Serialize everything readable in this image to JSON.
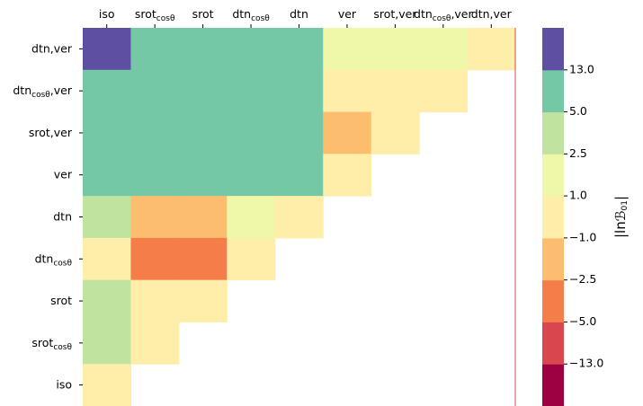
{
  "chart_data": {
    "type": "heatmap",
    "x_categories": [
      [
        "iso"
      ],
      [
        "srot",
        "cosθ"
      ],
      [
        "srot"
      ],
      [
        "dtn",
        "cosθ"
      ],
      [
        "dtn"
      ],
      [
        "ver"
      ],
      [
        "srot,ver"
      ],
      [
        "dtn",
        "cosθ",
        ",ver"
      ],
      [
        "dtn,ver"
      ]
    ],
    "y_categories": [
      [
        "dtn,ver"
      ],
      [
        "dtn",
        "cosθ",
        ",ver"
      ],
      [
        "srot,ver"
      ],
      [
        "ver"
      ],
      [
        "dtn"
      ],
      [
        "dtn",
        "cosθ"
      ],
      [
        "srot"
      ],
      [
        "srot",
        "cosθ"
      ],
      [
        "iso"
      ]
    ],
    "values": [
      [
        15,
        9,
        9,
        9,
        9,
        1.5,
        1.5,
        1.5,
        0
      ],
      [
        9,
        9,
        9,
        9,
        9,
        0,
        0,
        0,
        null
      ],
      [
        9,
        9,
        9,
        9,
        9,
        -1.7,
        0,
        null,
        null
      ],
      [
        9,
        9,
        9,
        9,
        9,
        0,
        null,
        null,
        null
      ],
      [
        3.5,
        -1.7,
        -1.7,
        1.5,
        0,
        null,
        null,
        null,
        null
      ],
      [
        0,
        -3.5,
        -3.5,
        0,
        null,
        null,
        null,
        null,
        null
      ],
      [
        3.5,
        0,
        0,
        null,
        null,
        null,
        null,
        null,
        null
      ],
      [
        3.5,
        0,
        null,
        null,
        null,
        null,
        null,
        null,
        null
      ],
      [
        0,
        null,
        null,
        null,
        null,
        null,
        null,
        null,
        null
      ]
    ],
    "colorbar": {
      "label": [
        "|lnℬ",
        "01",
        "|"
      ],
      "ticks": [
        {
          "value": -13,
          "label": "−13.0"
        },
        {
          "value": -5,
          "label": "−5.0"
        },
        {
          "value": -2.5,
          "label": "−2.5"
        },
        {
          "value": -1,
          "label": "−1.0"
        },
        {
          "value": 1,
          "label": "1.0"
        },
        {
          "value": 2.5,
          "label": "2.5"
        },
        {
          "value": 5,
          "label": "5.0"
        },
        {
          "value": 13,
          "label": "13.0"
        }
      ],
      "colors": [
        "#9e0142",
        "#d9464e",
        "#f57d4a",
        "#fdbd6f",
        "#feeeaa",
        "#eef8a8",
        "#c0e4a0",
        "#74c8a5",
        "#5e4fa2"
      ]
    }
  }
}
